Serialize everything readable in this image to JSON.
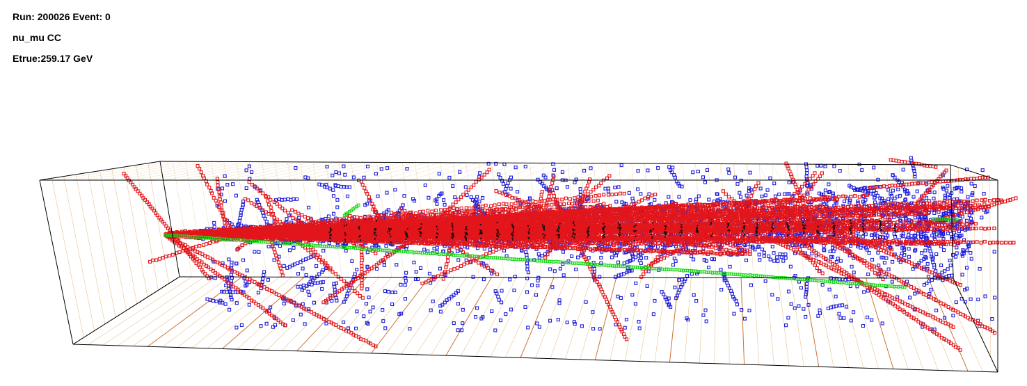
{
  "event_info": {
    "run_event": "Run: 200026 Event: 0",
    "interaction": "nu_mu CC",
    "energy": "Etrue:259.17 GeV"
  },
  "colors": {
    "background": "#ffffff",
    "detector_edge": "#000000",
    "grid_lines": "#e2b572",
    "grid_major": "#c8631e",
    "red_hits": "#e2161b",
    "blue_hits": "#1d1ddb",
    "green_track": "#1cd81c",
    "black_hits": "#101010"
  },
  "icons": {
    "event_display": "3d-event-display-icon"
  }
}
